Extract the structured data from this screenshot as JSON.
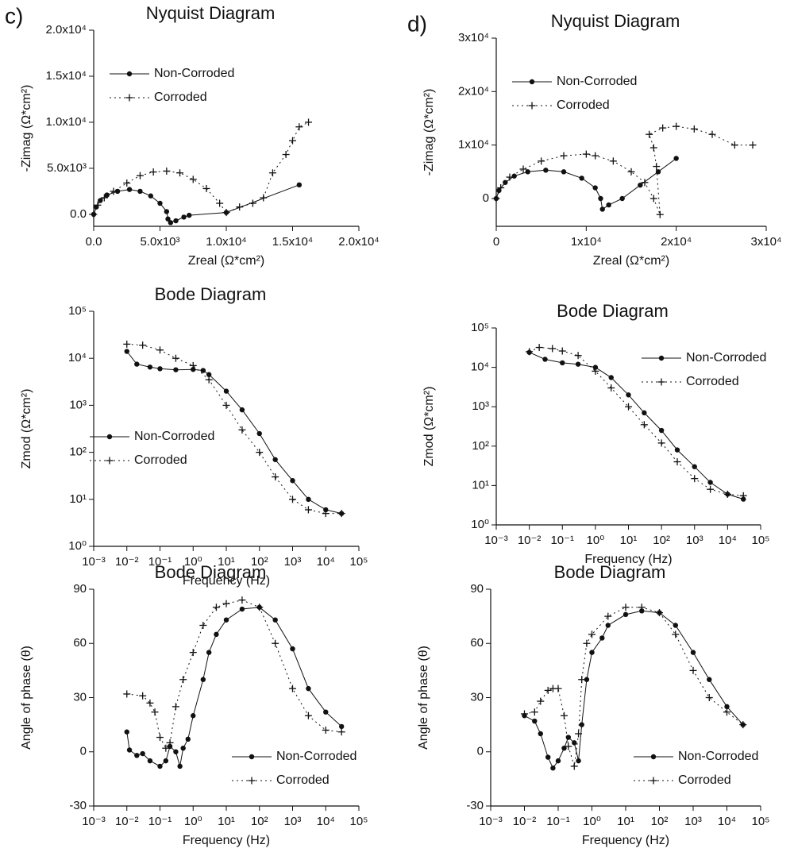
{
  "chart_data": [
    {
      "type": "line",
      "panel_label": "c)",
      "title": "Nyquist Diagram",
      "xlabel": "Zreal (Ω*cm²)",
      "ylabel": "-Zimag (Ω*cm²)",
      "xscale": "linear",
      "yscale": "linear",
      "xlim": [
        0,
        20000
      ],
      "ylim": [
        -1300,
        20000
      ],
      "xticks": [
        {
          "value": 0,
          "label": "0.0"
        },
        {
          "value": 5000,
          "label": "5.0x10³"
        },
        {
          "value": 10000,
          "label": "1.0x10⁴"
        },
        {
          "value": 15000,
          "label": "1.5x10⁴"
        },
        {
          "value": 20000,
          "label": "2.0x10⁴"
        }
      ],
      "yticks": [
        {
          "value": 0,
          "label": "0.0"
        },
        {
          "value": 5000,
          "label": "5.0x10³"
        },
        {
          "value": 10000,
          "label": "1.0x10⁴"
        },
        {
          "value": 15000,
          "label": "1.5x10⁴"
        },
        {
          "value": 20000,
          "label": "2.0x10⁴"
        }
      ],
      "legend": "upper left",
      "series": [
        {
          "name": "Non-Corroded",
          "color": "#111111",
          "marker": "circle",
          "linestyle": "solid",
          "x": [
            0,
            200,
            500,
            1000,
            1800,
            2700,
            3500,
            4300,
            5000,
            5500,
            5600,
            5800,
            6200,
            6800,
            7200,
            10000,
            15500
          ],
          "values": [
            0,
            800,
            1500,
            2100,
            2500,
            2700,
            2500,
            2000,
            1200,
            300,
            -500,
            -900,
            -700,
            -300,
            -100,
            200,
            3200
          ]
        },
        {
          "name": "Corroded",
          "color": "#111111",
          "marker": "plus",
          "linestyle": "dotted",
          "x": [
            0,
            300,
            800,
            1500,
            2500,
            3500,
            4500,
            5500,
            6500,
            7500,
            8500,
            9500,
            10000,
            11000,
            12000,
            12800,
            13500,
            14500,
            15000,
            15500,
            16200
          ],
          "values": [
            0,
            1000,
            1800,
            2500,
            3400,
            4200,
            4600,
            4700,
            4500,
            3800,
            2800,
            1200,
            200,
            800,
            1200,
            1800,
            4500,
            6500,
            8000,
            9500,
            10000
          ]
        }
      ]
    },
    {
      "type": "line",
      "panel_label": "d)",
      "title": "Nyquist Diagram",
      "xlabel": "Zreal (Ω*cm²)",
      "ylabel": "-Zimag (Ω*cm²)",
      "xscale": "linear",
      "yscale": "linear",
      "xlim": [
        0,
        30000
      ],
      "ylim": [
        -5200,
        30000
      ],
      "xticks": [
        0,
        {
          "value": 10000,
          "label": "1x10⁴"
        },
        {
          "value": 20000,
          "label": "2x10⁴"
        },
        {
          "value": 30000,
          "label": "3x10⁴"
        }
      ],
      "yticks": [
        0,
        {
          "value": 10000,
          "label": "1x10⁴"
        },
        {
          "value": 20000,
          "label": "2x10⁴"
        },
        {
          "value": 30000,
          "label": "3x10⁴"
        }
      ],
      "legend": "upper left",
      "series": [
        {
          "name": "Non-Corroded",
          "color": "#111111",
          "marker": "circle",
          "linestyle": "solid",
          "x": [
            0,
            300,
            1000,
            2000,
            3500,
            5500,
            7500,
            9500,
            11000,
            11600,
            11800,
            12500,
            14000,
            16000,
            18000,
            20000
          ],
          "values": [
            0,
            1500,
            3000,
            4200,
            5000,
            5300,
            5000,
            3800,
            2000,
            0,
            -2000,
            -1200,
            0,
            2500,
            5000,
            7500
          ]
        },
        {
          "name": "Corroded",
          "color": "#111111",
          "marker": "plus",
          "linestyle": "dotted",
          "x": [
            0,
            500,
            1500,
            3000,
            5000,
            7500,
            10000,
            11000,
            13000,
            15000,
            16500,
            17500,
            18200,
            17800,
            17500,
            17000,
            18500,
            20000,
            22000,
            24000,
            26500,
            28500
          ],
          "values": [
            0,
            2000,
            4000,
            5500,
            7000,
            8000,
            8300,
            8000,
            7000,
            5000,
            3000,
            0,
            -3000,
            6000,
            9500,
            12000,
            13200,
            13500,
            13000,
            12000,
            10000,
            10000
          ]
        }
      ]
    },
    {
      "type": "line",
      "title": "Bode Diagram",
      "xlabel": "Frequency (Hz)",
      "ylabel": "Zmod (Ω*cm²)",
      "xscale": "log",
      "yscale": "log",
      "xlim": [
        0.001,
        100000
      ],
      "ylim": [
        1,
        100000
      ],
      "xticks": [
        {
          "value": 0.001,
          "label": "10⁻³"
        },
        {
          "value": 0.01,
          "label": "10⁻²"
        },
        {
          "value": 0.1,
          "label": "10⁻¹"
        },
        {
          "value": 1,
          "label": "10⁰"
        },
        {
          "value": 10,
          "label": "10¹"
        },
        {
          "value": 100,
          "label": "10²"
        },
        {
          "value": 1000,
          "label": "10³"
        },
        {
          "value": 10000,
          "label": "10⁴"
        },
        {
          "value": 100000,
          "label": "10⁵"
        }
      ],
      "yticks": [
        {
          "value": 1,
          "label": "10⁰"
        },
        {
          "value": 10,
          "label": "10¹"
        },
        {
          "value": 100,
          "label": "10²"
        },
        {
          "value": 1000,
          "label": "10³"
        },
        {
          "value": 10000,
          "label": "10⁴"
        },
        {
          "value": 100000,
          "label": "10⁵"
        }
      ],
      "legend": "center left",
      "series": [
        {
          "name": "Non-Corroded",
          "color": "#111111",
          "marker": "circle",
          "linestyle": "solid",
          "x": [
            0.01,
            0.02,
            0.05,
            0.1,
            0.3,
            1,
            2,
            3,
            10,
            30,
            100,
            300,
            1000,
            3000,
            10000,
            30000
          ],
          "values": [
            14000,
            7500,
            6500,
            6000,
            5700,
            5800,
            5500,
            4500,
            2000,
            800,
            250,
            70,
            25,
            10,
            6,
            5
          ]
        },
        {
          "name": "Corroded",
          "color": "#111111",
          "marker": "plus",
          "linestyle": "dotted",
          "x": [
            0.01,
            0.03,
            0.1,
            0.3,
            1,
            3,
            10,
            30,
            100,
            300,
            1000,
            3000,
            10000,
            30000
          ],
          "values": [
            20000,
            19000,
            15000,
            10000,
            7000,
            3500,
            1000,
            300,
            100,
            30,
            10,
            6,
            5,
            5
          ]
        }
      ]
    },
    {
      "type": "line",
      "title": "Bode Diagram",
      "xlabel": "Frequency (Hz)",
      "ylabel": "Zmod (Ω*cm²)",
      "xscale": "log",
      "yscale": "log",
      "xlim": [
        0.001,
        100000
      ],
      "ylim": [
        1,
        100000
      ],
      "xticks": [
        {
          "value": 0.001,
          "label": "10⁻³"
        },
        {
          "value": 0.01,
          "label": "10⁻²"
        },
        {
          "value": 0.1,
          "label": "10⁻¹"
        },
        {
          "value": 1,
          "label": "10⁰"
        },
        {
          "value": 10,
          "label": "10¹"
        },
        {
          "value": 100,
          "label": "10²"
        },
        {
          "value": 1000,
          "label": "10³"
        },
        {
          "value": 10000,
          "label": "10⁴"
        },
        {
          "value": 100000,
          "label": "10⁵"
        }
      ],
      "yticks": [
        {
          "value": 1,
          "label": "10⁰"
        },
        {
          "value": 10,
          "label": "10¹"
        },
        {
          "value": 100,
          "label": "10²"
        },
        {
          "value": 1000,
          "label": "10³"
        },
        {
          "value": 10000,
          "label": "10⁴"
        },
        {
          "value": 100000,
          "label": "10⁵"
        }
      ],
      "legend": "upper right",
      "series": [
        {
          "name": "Non-Corroded",
          "color": "#111111",
          "marker": "circle",
          "linestyle": "solid",
          "x": [
            0.01,
            0.03,
            0.1,
            0.3,
            1,
            3,
            10,
            30,
            100,
            300,
            1000,
            3000,
            10000,
            30000
          ],
          "values": [
            24000,
            16000,
            13000,
            12000,
            10000,
            5500,
            2000,
            700,
            250,
            80,
            30,
            12,
            6,
            4.5
          ]
        },
        {
          "name": "Corroded",
          "color": "#111111",
          "marker": "plus",
          "linestyle": "dotted",
          "x": [
            0.01,
            0.02,
            0.05,
            0.1,
            0.3,
            1,
            3,
            10,
            30,
            100,
            300,
            1000,
            3000,
            10000,
            30000
          ],
          "values": [
            25000,
            32000,
            30000,
            26000,
            20000,
            8000,
            3000,
            1000,
            350,
            120,
            40,
            15,
            8,
            6,
            5.5
          ]
        }
      ]
    },
    {
      "type": "line",
      "title": "Bode Diagram",
      "xlabel": "Frequency (Hz)",
      "ylabel": "Angle of phase (θ)",
      "xscale": "log",
      "yscale": "linear",
      "xlim": [
        0.001,
        100000
      ],
      "ylim": [
        -30,
        90
      ],
      "xticks": [
        {
          "value": 0.001,
          "label": "10⁻³"
        },
        {
          "value": 0.01,
          "label": "10⁻²"
        },
        {
          "value": 0.1,
          "label": "10⁻¹"
        },
        {
          "value": 1,
          "label": "10⁰"
        },
        {
          "value": 10,
          "label": "10¹"
        },
        {
          "value": 100,
          "label": "10²"
        },
        {
          "value": 1000,
          "label": "10³"
        },
        {
          "value": 10000,
          "label": "10⁴"
        },
        {
          "value": 100000,
          "label": "10⁵"
        }
      ],
      "yticks": [
        -30,
        0,
        30,
        60,
        90
      ],
      "legend": "lower right",
      "series": [
        {
          "name": "Non-Corroded",
          "color": "#111111",
          "marker": "circle",
          "linestyle": "solid",
          "x": [
            0.01,
            0.012,
            0.02,
            0.03,
            0.05,
            0.1,
            0.15,
            0.2,
            0.3,
            0.4,
            0.5,
            0.7,
            1,
            2,
            3,
            5,
            10,
            30,
            100,
            300,
            1000,
            3000,
            10000,
            30000
          ],
          "values": [
            11,
            1,
            -2,
            -1,
            -5,
            -8,
            -5,
            3,
            0,
            -8,
            2,
            7,
            20,
            40,
            55,
            65,
            73,
            79,
            80,
            73,
            57,
            35,
            22,
            14
          ]
        },
        {
          "name": "Corroded",
          "color": "#111111",
          "marker": "plus",
          "linestyle": "dotted",
          "x": [
            0.01,
            0.03,
            0.05,
            0.07,
            0.1,
            0.15,
            0.2,
            0.3,
            0.5,
            1,
            2,
            5,
            10,
            30,
            100,
            300,
            1000,
            3000,
            10000,
            30000
          ],
          "values": [
            32,
            31,
            27,
            22,
            8,
            2,
            5,
            25,
            40,
            55,
            70,
            80,
            82,
            84,
            80,
            60,
            35,
            20,
            12,
            11
          ]
        }
      ]
    },
    {
      "type": "line",
      "title": "Bode Diagram",
      "xlabel": "Frequency (Hz)",
      "ylabel": "Angle of phase (θ)",
      "xscale": "log",
      "yscale": "linear",
      "xlim": [
        0.001,
        100000
      ],
      "ylim": [
        -30,
        90
      ],
      "xticks": [
        {
          "value": 0.001,
          "label": "10⁻³"
        },
        {
          "value": 0.01,
          "label": "10⁻²"
        },
        {
          "value": 0.1,
          "label": "10⁻¹"
        },
        {
          "value": 1,
          "label": "10⁰"
        },
        {
          "value": 10,
          "label": "10¹"
        },
        {
          "value": 100,
          "label": "10²"
        },
        {
          "value": 1000,
          "label": "10³"
        },
        {
          "value": 10000,
          "label": "10⁴"
        },
        {
          "value": 100000,
          "label": "10⁵"
        }
      ],
      "yticks": [
        -30,
        0,
        30,
        60,
        90
      ],
      "legend": "lower right",
      "series": [
        {
          "name": "Non-Corroded",
          "color": "#111111",
          "marker": "circle",
          "linestyle": "solid",
          "x": [
            0.01,
            0.02,
            0.03,
            0.05,
            0.07,
            0.1,
            0.15,
            0.2,
            0.3,
            0.4,
            0.5,
            0.7,
            1,
            2,
            3,
            10,
            30,
            100,
            300,
            1000,
            3000,
            10000,
            30000
          ],
          "values": [
            20,
            17,
            10,
            -3,
            -9,
            -5,
            2,
            8,
            5,
            -5,
            15,
            40,
            55,
            63,
            70,
            76,
            78,
            77,
            70,
            55,
            40,
            25,
            15
          ]
        },
        {
          "name": "Corroded",
          "color": "#111111",
          "marker": "plus",
          "linestyle": "dotted",
          "x": [
            0.01,
            0.02,
            0.03,
            0.05,
            0.07,
            0.1,
            0.15,
            0.2,
            0.3,
            0.4,
            0.5,
            0.7,
            1,
            3,
            10,
            30,
            100,
            300,
            1000,
            3000,
            10000,
            30000
          ],
          "values": [
            21,
            22,
            28,
            34,
            35,
            35,
            20,
            3,
            -8,
            10,
            40,
            60,
            65,
            75,
            80,
            80,
            77,
            65,
            45,
            30,
            22,
            15
          ]
        }
      ]
    }
  ]
}
